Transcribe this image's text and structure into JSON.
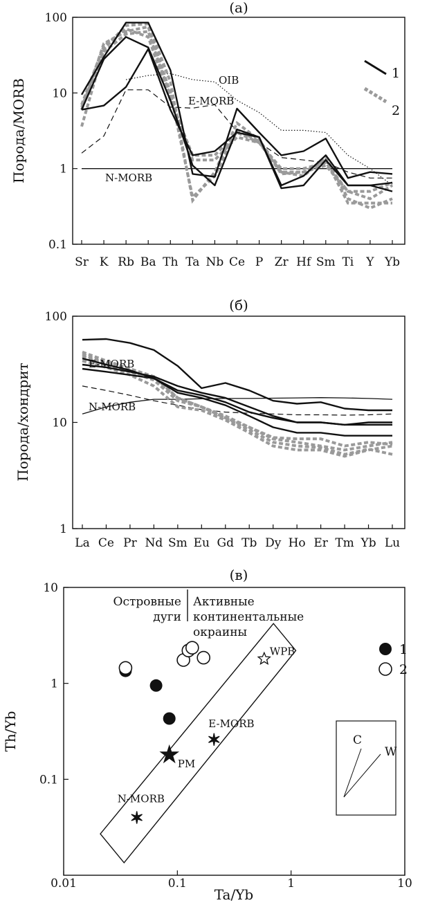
{
  "chart_data": [
    {
      "type": "line",
      "title": "(а)",
      "ylabel": "Порода/MORB",
      "yscale": "log",
      "ylim": [
        0.1,
        100
      ],
      "yticks": [
        "0.1",
        "1",
        "10",
        "100"
      ],
      "categories": [
        "Sr",
        "K",
        "Rb",
        "Ba",
        "Th",
        "Ta",
        "Nb",
        "Ce",
        "P",
        "Zr",
        "Hf",
        "Sm",
        "Ti",
        "Y",
        "Yb"
      ],
      "reference_lines": [
        {
          "name": "OIB",
          "style": "dotted",
          "values": [
            null,
            null,
            15,
            17,
            18,
            15,
            14,
            8,
            5.5,
            3.2,
            3.2,
            3,
            1.5,
            1,
            0.6
          ]
        },
        {
          "name": "E-MORB",
          "style": "dashed",
          "values": [
            1.6,
            2.7,
            11,
            11,
            6.5,
            6.3,
            7,
            3.1,
            2.2,
            1.4,
            1.3,
            1.2,
            0.9,
            0.75,
            0.75
          ]
        },
        {
          "name": "N-MORB",
          "style": "solid-thin",
          "values": [
            1,
            1,
            1,
            1,
            1,
            1,
            1,
            1,
            1,
            1,
            1,
            1,
            1,
            1,
            1
          ]
        }
      ],
      "group1_series": [
        [
          9.5,
          30,
          85,
          85,
          20,
          0.85,
          0.78,
          6.2,
          3,
          1.5,
          1.7,
          2.5,
          0.75,
          0.9,
          0.85
        ],
        [
          6,
          6.8,
          12,
          38,
          6,
          1.5,
          1.7,
          3,
          2.6,
          0.55,
          0.6,
          1.3,
          0.6,
          0.6,
          0.5
        ],
        [
          6,
          28,
          55,
          40,
          8,
          1.1,
          0.6,
          3.3,
          2.6,
          0.6,
          0.8,
          1.5,
          0.6,
          0.6,
          0.65
        ]
      ],
      "group2_series": [
        [
          3.6,
          38,
          78,
          82,
          14,
          0.38,
          0.9,
          4,
          2.4,
          0.9,
          0.8,
          1.4,
          0.4,
          0.3,
          0.4
        ],
        [
          6,
          45,
          65,
          75,
          10,
          0.42,
          0.8,
          3.2,
          2.3,
          0.85,
          0.9,
          1.3,
          0.35,
          0.35,
          0.35
        ],
        [
          6.5,
          35,
          60,
          65,
          9,
          1.3,
          1.3,
          2.6,
          2.2,
          0.9,
          0.9,
          1.1,
          0.5,
          0.4,
          0.6
        ],
        [
          7,
          42,
          70,
          55,
          8,
          1.5,
          1.5,
          3,
          2.2,
          1,
          1,
          1.2,
          0.5,
          0.5,
          0.65
        ]
      ],
      "legend": [
        {
          "key": "1",
          "style": "solid"
        },
        {
          "key": "2",
          "style": "dotted-gray"
        }
      ],
      "legend_position": "top-right"
    },
    {
      "type": "line",
      "title": "(б)",
      "ylabel": "Порода/хондрит",
      "yscale": "log",
      "ylim": [
        1,
        100
      ],
      "yticks": [
        "1",
        "10",
        "100"
      ],
      "categories": [
        "La",
        "Ce",
        "Pr",
        "Nd",
        "Sm",
        "Eu",
        "Gd",
        "Tb",
        "Dy",
        "Ho",
        "Er",
        "Tm",
        "Yb",
        "Lu"
      ],
      "reference_lines": [
        {
          "name": "E-MORB",
          "style": "dashed",
          "values": [
            22,
            20,
            18,
            16,
            14.5,
            13.2,
            12.5,
            12.2,
            12,
            11.8,
            11.8,
            11.7,
            11.8,
            12
          ]
        },
        {
          "name": "N-MORB",
          "style": "solid-thin",
          "values": [
            12,
            14,
            15.5,
            16.5,
            16.5,
            16.7,
            16.8,
            16.8,
            16.9,
            17,
            17.1,
            17,
            16.8,
            16.5
          ]
        }
      ],
      "group1_series": [
        [
          60,
          61,
          56,
          48,
          34,
          21,
          23.5,
          20,
          16,
          15,
          15.5,
          13.5,
          13,
          13
        ],
        [
          35,
          33,
          30,
          27,
          22,
          19,
          17,
          14,
          11.5,
          10,
          10,
          9.5,
          9.5,
          9.5
        ],
        [
          40,
          35,
          31,
          26,
          20,
          18,
          15.5,
          12.5,
          11,
          10,
          10,
          9.5,
          10,
          10
        ],
        [
          32,
          30,
          28,
          26,
          19,
          17,
          14.5,
          11.5,
          9,
          8,
          8,
          7.5,
          7.5,
          7.5
        ]
      ],
      "group2_series": [
        [
          46,
          38,
          32,
          27,
          17,
          14,
          11,
          9,
          7,
          6.5,
          6,
          5.5,
          6,
          6.5
        ],
        [
          42,
          35,
          30,
          26,
          17,
          14,
          11,
          8.5,
          6.5,
          6,
          5.8,
          5,
          5.6,
          5
        ],
        [
          38,
          33,
          28,
          22,
          14,
          13,
          10.5,
          8,
          6,
          5.5,
          5.5,
          4.8,
          5.5,
          6
        ],
        [
          44,
          36,
          30,
          25,
          16,
          14,
          11.5,
          9,
          7.2,
          7,
          7,
          6,
          6.5,
          6.2
        ]
      ]
    },
    {
      "type": "scatter",
      "title": "(в)",
      "xlabel": "Ta/Yb",
      "ylabel": "Th/Yb",
      "xscale": "log",
      "yscale": "log",
      "xlim": [
        0.01,
        10
      ],
      "ylim": [
        0.01,
        10
      ],
      "xticks": [
        "0.01",
        "0.1",
        "1",
        "10"
      ],
      "yticks": [
        "0.1",
        "1",
        "10"
      ],
      "region_labels": [
        "Островные",
        "дуги",
        "Активные",
        "континентальные",
        "окраины"
      ],
      "series": [
        {
          "name": "1",
          "marker": "filled-circle",
          "points": [
            [
              0.035,
              1.35
            ],
            [
              0.065,
              0.95
            ],
            [
              0.085,
              0.43
            ]
          ]
        },
        {
          "name": "2",
          "marker": "open-circle",
          "points": [
            [
              0.035,
              1.45
            ],
            [
              0.113,
              1.75
            ],
            [
              0.125,
              2.2
            ],
            [
              0.135,
              2.35
            ],
            [
              0.17,
              1.85
            ]
          ]
        }
      ],
      "reference_points": [
        {
          "name": "WPB",
          "x": 0.58,
          "y": 1.8
        },
        {
          "name": "E-MORB",
          "x": 0.21,
          "y": 0.26
        },
        {
          "name": "PM",
          "x": 0.085,
          "y": 0.18
        },
        {
          "name": "N-MORB",
          "x": 0.044,
          "y": 0.04
        }
      ],
      "mantle_array_corners": [
        [
          0.021,
          0.027
        ],
        [
          0.034,
          0.0135
        ],
        [
          1.1,
          2.2
        ],
        [
          0.7,
          4.2
        ]
      ],
      "vector_inset": {
        "labels": [
          "C",
          "W"
        ]
      },
      "legend": [
        {
          "key": "1",
          "marker": "filled-circle"
        },
        {
          "key": "2",
          "marker": "open-circle"
        }
      ],
      "legend_position": "top-right"
    }
  ]
}
